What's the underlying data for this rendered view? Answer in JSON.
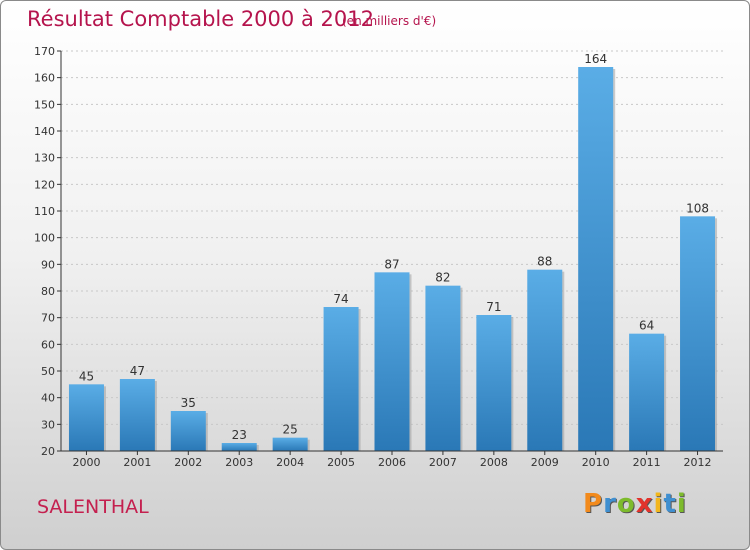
{
  "header": {
    "title": "Résultat Comptable 2000 à 2012",
    "subtitle": "(en milliers d'€)"
  },
  "footer": {
    "commune": "SALENTHAL",
    "brand": "Proxiti"
  },
  "colors": {
    "title": "#b5144d",
    "bar_light": "#5aade6",
    "bar_dark": "#2a78b6",
    "logo_letters": [
      "#f28a1c",
      "#3f8fd0",
      "#7dbb2c",
      "#e2332c",
      "#f2b61d",
      "#3f8fd0",
      "#7dbb2c"
    ]
  },
  "chart_data": {
    "type": "bar",
    "title": "Résultat Comptable 2000 à 2012",
    "subtitle": "(en milliers d'€)",
    "xlabel": "",
    "ylabel": "",
    "categories": [
      "2000",
      "2001",
      "2002",
      "2003",
      "2004",
      "2005",
      "2006",
      "2007",
      "2008",
      "2009",
      "2010",
      "2011",
      "2012"
    ],
    "values": [
      45,
      47,
      35,
      23,
      25,
      74,
      87,
      82,
      71,
      88,
      164,
      64,
      108
    ],
    "ylim": [
      20,
      170
    ],
    "yticks": [
      20,
      30,
      40,
      50,
      60,
      70,
      80,
      90,
      100,
      110,
      120,
      130,
      140,
      150,
      160,
      170
    ],
    "grid": true,
    "legend": "none"
  }
}
